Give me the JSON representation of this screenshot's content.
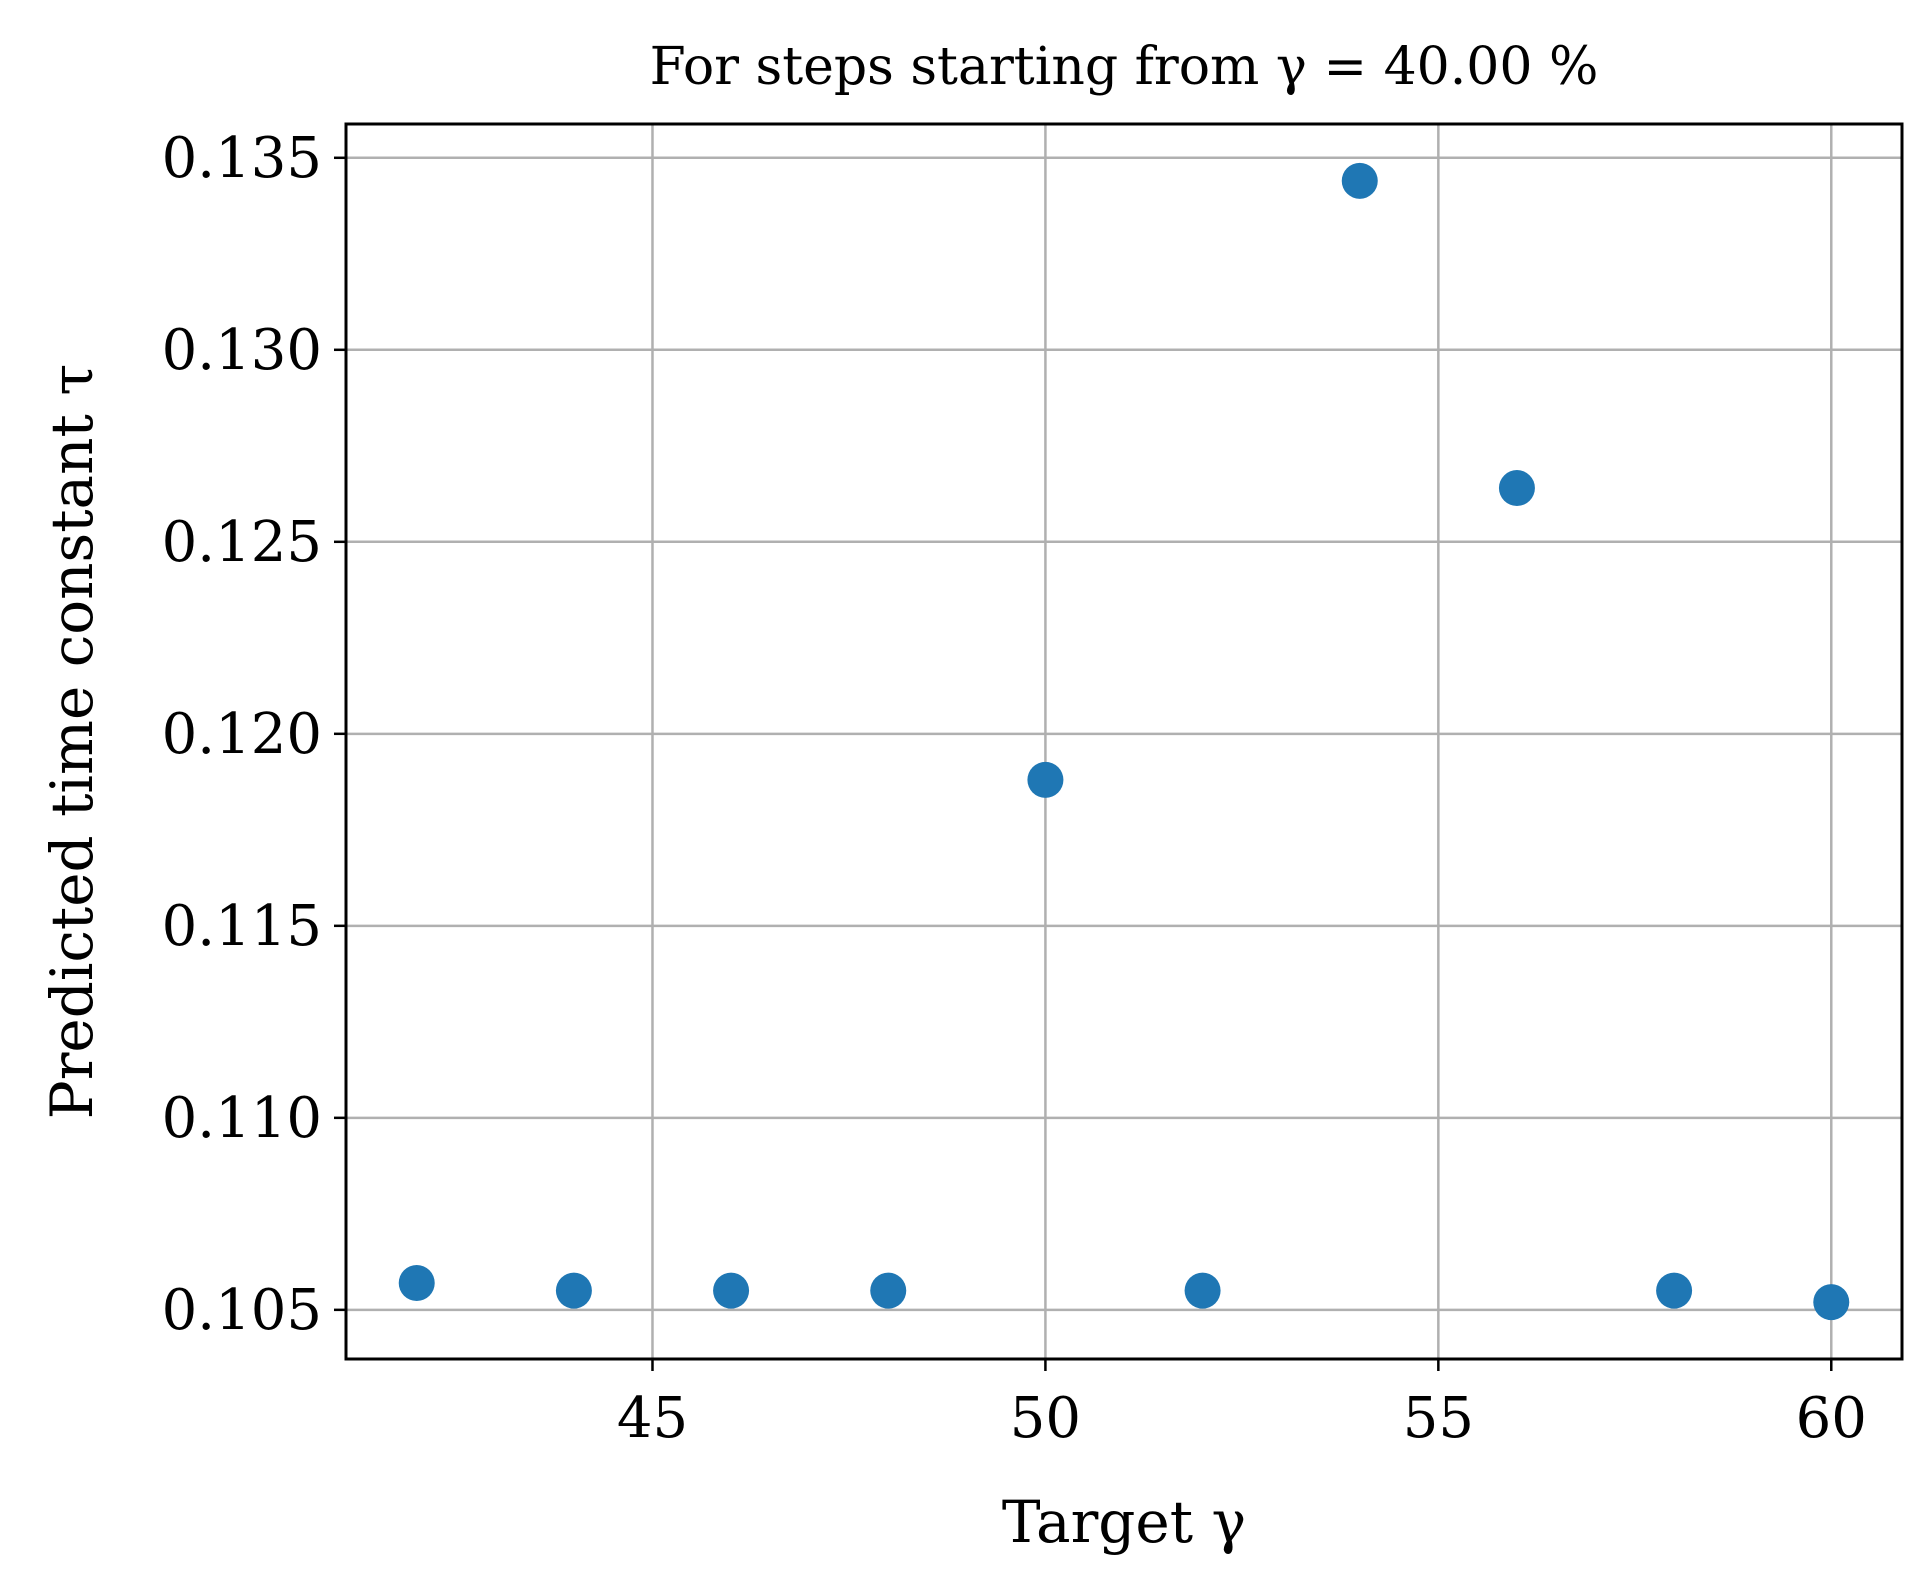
{
  "chart_data": {
    "type": "scatter",
    "title": "For steps starting from γ = 40.00 %",
    "xlabel": "Target γ",
    "ylabel": "Predicted time constant τ",
    "xlim": [
      41.1,
      60.9
    ],
    "ylim": [
      0.10372,
      0.13588
    ],
    "xticks": [
      45,
      50,
      55,
      60
    ],
    "yticks": [
      0.105,
      0.11,
      0.115,
      0.12,
      0.125,
      0.13,
      0.135
    ],
    "ytick_labels": [
      "0.105",
      "0.110",
      "0.115",
      "0.120",
      "0.125",
      "0.130",
      "0.135"
    ],
    "xtick_labels": [
      "45",
      "50",
      "55",
      "60"
    ],
    "grid": true,
    "marker_color": "#1f77b4",
    "x": [
      42,
      44,
      46,
      48,
      50,
      52,
      54,
      56,
      58,
      60
    ],
    "y": [
      0.1057,
      0.1055,
      0.1055,
      0.1055,
      0.1188,
      0.1055,
      0.1344,
      0.1264,
      0.1055,
      0.1052
    ]
  }
}
